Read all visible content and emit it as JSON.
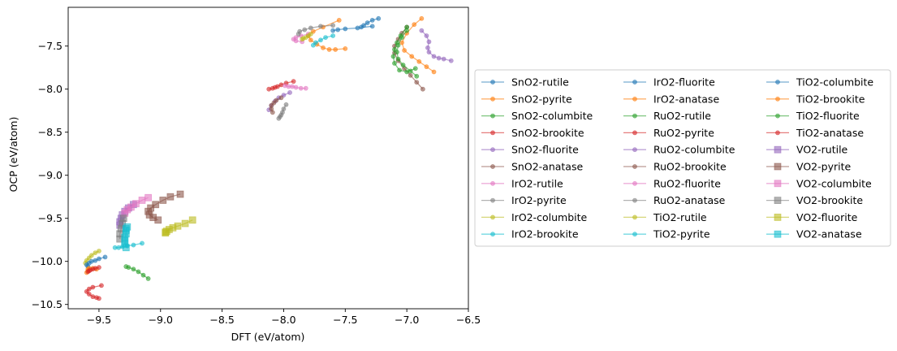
{
  "chart_data": {
    "type": "line",
    "title": "",
    "xlabel": "DFT (eV/atom)",
    "ylabel": "OCP (eV/atom)",
    "xlim": [
      -9.75,
      -6.5
    ],
    "ylim": [
      -10.55,
      -7.05
    ],
    "xticks": [
      -9.5,
      -9.0,
      -8.5,
      -8.0,
      -7.5,
      -7.0,
      -6.5
    ],
    "xtick_labels": [
      "−9.5",
      "−9.0",
      "−8.5",
      "−8.0",
      "−7.5",
      "−7.0",
      "−6.5"
    ],
    "yticks": [
      -10.5,
      -10.0,
      -9.5,
      -9.0,
      -8.5,
      -8.0,
      -7.5
    ],
    "ytick_labels": [
      "−10.5",
      "−10.0",
      "−9.5",
      "−9.0",
      "−8.5",
      "−8.0",
      "−7.5"
    ],
    "grid": false,
    "legend_placement": "outside-right",
    "legend_columns": 3,
    "colors": [
      "#1f77b4",
      "#ff7f0e",
      "#2ca02c",
      "#d62728",
      "#9467bd",
      "#8c564b",
      "#e377c2",
      "#7f7f7f",
      "#bcbd22",
      "#17becf"
    ],
    "series": [
      {
        "name": "SnO2-rutile",
        "marker": "circle",
        "x": [
          -7.28,
          -7.4,
          -7.5,
          -7.56,
          -7.6
        ],
        "y": [
          -7.27,
          -7.29,
          -7.3,
          -7.31,
          -7.32
        ]
      },
      {
        "name": "SnO2-pyrite",
        "marker": "circle",
        "x": [
          -7.55,
          -7.68,
          -7.76,
          -7.8,
          -7.78,
          -7.73,
          -7.68,
          -7.63,
          -7.58,
          -7.5
        ],
        "y": [
          -7.2,
          -7.28,
          -7.33,
          -7.38,
          -7.43,
          -7.48,
          -7.52,
          -7.54,
          -7.54,
          -7.53
        ]
      },
      {
        "name": "SnO2-columbite",
        "marker": "circle",
        "x": [
          -9.28,
          -9.26,
          -9.22,
          -9.18,
          -9.14,
          -9.1
        ],
        "y": [
          -10.06,
          -10.07,
          -10.09,
          -10.12,
          -10.16,
          -10.2
        ]
      },
      {
        "name": "SnO2-brookite",
        "marker": "circle",
        "x": [
          -9.48,
          -9.55,
          -9.58,
          -9.6,
          -9.58,
          -9.55,
          -9.52,
          -9.5
        ],
        "y": [
          -10.28,
          -10.3,
          -10.32,
          -10.35,
          -10.38,
          -10.41,
          -10.42,
          -10.43
        ]
      },
      {
        "name": "SnO2-fluorite",
        "marker": "circle",
        "x": [
          -6.88,
          -6.84,
          -6.82,
          -6.83,
          -6.82,
          -6.78,
          -6.74,
          -6.7,
          -6.64
        ],
        "y": [
          -7.32,
          -7.38,
          -7.45,
          -7.52,
          -7.57,
          -7.62,
          -7.64,
          -7.65,
          -7.67
        ]
      },
      {
        "name": "SnO2-anatase",
        "marker": "circle",
        "x": [
          -7.0,
          -7.04,
          -7.07,
          -7.1,
          -7.1,
          -7.07,
          -7.02,
          -6.97,
          -6.92,
          -6.87
        ],
        "y": [
          -7.28,
          -7.35,
          -7.42,
          -7.5,
          -7.58,
          -7.67,
          -7.76,
          -7.84,
          -7.92,
          -8.0
        ]
      },
      {
        "name": "IrO2-rutile",
        "marker": "circle",
        "x": [
          -7.8,
          -7.86,
          -7.9,
          -7.92,
          -7.9,
          -7.85
        ],
        "y": [
          -7.36,
          -7.38,
          -7.4,
          -7.42,
          -7.44,
          -7.45
        ]
      },
      {
        "name": "IrO2-pyrite",
        "marker": "circle",
        "x": [
          -7.6,
          -7.7,
          -7.78,
          -7.83,
          -7.87,
          -7.88
        ],
        "y": [
          -7.26,
          -7.27,
          -7.29,
          -7.31,
          -7.33,
          -7.36
        ]
      },
      {
        "name": "IrO2-columbite",
        "marker": "circle",
        "x": [
          -7.78,
          -7.8,
          -7.82,
          -7.84,
          -7.85
        ],
        "y": [
          -7.36,
          -7.38,
          -7.4,
          -7.41,
          -7.42
        ]
      },
      {
        "name": "IrO2-brookite",
        "marker": "circle",
        "x": [
          -7.6,
          -7.66,
          -7.7,
          -7.74,
          -7.76
        ],
        "y": [
          -7.38,
          -7.4,
          -7.43,
          -7.46,
          -7.49
        ]
      },
      {
        "name": "IrO2-fluorite",
        "marker": "circle",
        "x": [
          -7.23,
          -7.28,
          -7.32,
          -7.35,
          -7.37
        ],
        "y": [
          -7.18,
          -7.2,
          -7.23,
          -7.26,
          -7.28
        ]
      },
      {
        "name": "IrO2-anatase",
        "marker": "circle",
        "x": [
          -6.88,
          -6.94,
          -7.0,
          -7.04,
          -7.02,
          -6.96,
          -6.9,
          -6.84,
          -6.78
        ],
        "y": [
          -7.18,
          -7.25,
          -7.35,
          -7.46,
          -7.55,
          -7.62,
          -7.68,
          -7.74,
          -7.8
        ]
      },
      {
        "name": "RuO2-rutile",
        "marker": "circle",
        "x": [
          -7.0,
          -7.05,
          -7.08,
          -7.1,
          -7.11,
          -7.1,
          -7.06,
          -7.0,
          -6.93
        ],
        "y": [
          -7.28,
          -7.38,
          -7.46,
          -7.54,
          -7.62,
          -7.7,
          -7.78,
          -7.8,
          -7.76
        ]
      },
      {
        "name": "RuO2-pyrite",
        "marker": "circle",
        "x": [
          -7.92,
          -7.98,
          -8.02,
          -8.05,
          -8.07,
          -8.09,
          -8.12
        ],
        "y": [
          -7.91,
          -7.93,
          -7.95,
          -7.97,
          -7.98,
          -7.99,
          -8.0
        ]
      },
      {
        "name": "RuO2-columbite",
        "marker": "circle",
        "x": [
          -7.95,
          -8.0,
          -8.04,
          -8.07,
          -8.1,
          -8.12
        ],
        "y": [
          -8.04,
          -8.07,
          -8.1,
          -8.14,
          -8.19,
          -8.24
        ]
      },
      {
        "name": "RuO2-brookite",
        "marker": "circle",
        "x": [
          -8.02,
          -8.06,
          -8.08,
          -8.1,
          -8.1,
          -8.09
        ],
        "y": [
          -8.1,
          -8.13,
          -8.16,
          -8.19,
          -8.23,
          -8.27
        ]
      },
      {
        "name": "RuO2-fluorite",
        "marker": "circle",
        "x": [
          -7.82,
          -7.86,
          -7.9,
          -7.93,
          -7.96,
          -7.99
        ],
        "y": [
          -7.99,
          -7.99,
          -7.98,
          -7.97,
          -7.97,
          -7.96
        ]
      },
      {
        "name": "RuO2-anatase",
        "marker": "circle",
        "x": [
          -7.98,
          -8.0,
          -8.01,
          -8.02,
          -8.03,
          -8.04
        ],
        "y": [
          -8.18,
          -8.23,
          -8.27,
          -8.3,
          -8.32,
          -8.34
        ]
      },
      {
        "name": "TiO2-rutile",
        "marker": "circle",
        "x": [
          -9.5,
          -9.53,
          -9.56,
          -9.58,
          -9.6,
          -9.61
        ],
        "y": [
          -9.88,
          -9.9,
          -9.93,
          -9.96,
          -9.99,
          -10.02
        ]
      },
      {
        "name": "TiO2-pyrite",
        "marker": "circle",
        "x": [
          -9.15,
          -9.22,
          -9.27,
          -9.31,
          -9.34,
          -9.37
        ],
        "y": [
          -9.79,
          -9.81,
          -9.82,
          -9.83,
          -9.84,
          -9.84
        ]
      },
      {
        "name": "TiO2-columbite",
        "marker": "circle",
        "x": [
          -9.45,
          -9.5,
          -9.53,
          -9.56,
          -9.58,
          -9.6,
          -9.59
        ],
        "y": [
          -9.95,
          -9.97,
          -9.99,
          -10.0,
          -10.02,
          -10.04,
          -10.06
        ]
      },
      {
        "name": "TiO2-brookite",
        "marker": "circle",
        "x": [
          -9.52,
          -9.55,
          -9.58,
          -9.59,
          -9.59,
          -9.6
        ],
        "y": [
          -10.09,
          -10.08,
          -10.08,
          -10.09,
          -10.11,
          -10.13
        ]
      },
      {
        "name": "TiO2-fluorite",
        "marker": "circle",
        "x": [
          -7.0,
          -7.04,
          -7.07,
          -7.08,
          -7.07,
          -7.03,
          -6.97,
          -6.92
        ],
        "y": [
          -7.32,
          -7.4,
          -7.49,
          -7.57,
          -7.65,
          -7.72,
          -7.79,
          -7.85
        ]
      },
      {
        "name": "TiO2-anatase",
        "marker": "circle",
        "x": [
          -9.5,
          -9.53,
          -9.55,
          -9.57,
          -9.58,
          -9.59
        ],
        "y": [
          -10.07,
          -10.08,
          -10.09,
          -10.1,
          -10.11,
          -10.12
        ]
      },
      {
        "name": "VO2-rutile",
        "marker": "square",
        "x": [
          -9.22,
          -9.26,
          -9.29,
          -9.31,
          -9.32,
          -9.33,
          -9.33
        ],
        "y": [
          -9.34,
          -9.38,
          -9.42,
          -9.46,
          -9.5,
          -9.54,
          -9.58
        ]
      },
      {
        "name": "VO2-pyrite",
        "marker": "square",
        "x": [
          -8.84,
          -8.92,
          -8.98,
          -9.04,
          -9.08,
          -9.1,
          -9.09,
          -9.06,
          -9.02
        ],
        "y": [
          -9.22,
          -9.25,
          -9.29,
          -9.34,
          -9.38,
          -9.42,
          -9.46,
          -9.49,
          -9.52
        ]
      },
      {
        "name": "VO2-columbite",
        "marker": "square",
        "x": [
          -9.1,
          -9.15,
          -9.2,
          -9.24,
          -9.27,
          -9.29
        ],
        "y": [
          -9.26,
          -9.29,
          -9.33,
          -9.37,
          -9.4,
          -9.44
        ]
      },
      {
        "name": "VO2-brookite",
        "marker": "square",
        "x": [
          -9.3,
          -9.31,
          -9.32,
          -9.33,
          -9.33
        ],
        "y": [
          -9.5,
          -9.56,
          -9.62,
          -9.68,
          -9.74
        ]
      },
      {
        "name": "VO2-fluorite",
        "marker": "square",
        "x": [
          -8.74,
          -8.8,
          -8.86,
          -8.9,
          -8.93,
          -8.95,
          -8.96,
          -8.96
        ],
        "y": [
          -9.52,
          -9.56,
          -9.59,
          -9.61,
          -9.63,
          -9.65,
          -9.66,
          -9.67
        ]
      },
      {
        "name": "VO2-anatase",
        "marker": "square",
        "x": [
          -9.27,
          -9.28,
          -9.28,
          -9.29,
          -9.29,
          -9.29,
          -9.28,
          -9.28
        ],
        "y": [
          -9.6,
          -9.64,
          -9.68,
          -9.72,
          -9.76,
          -9.8,
          -9.84,
          -9.62
        ]
      }
    ]
  }
}
